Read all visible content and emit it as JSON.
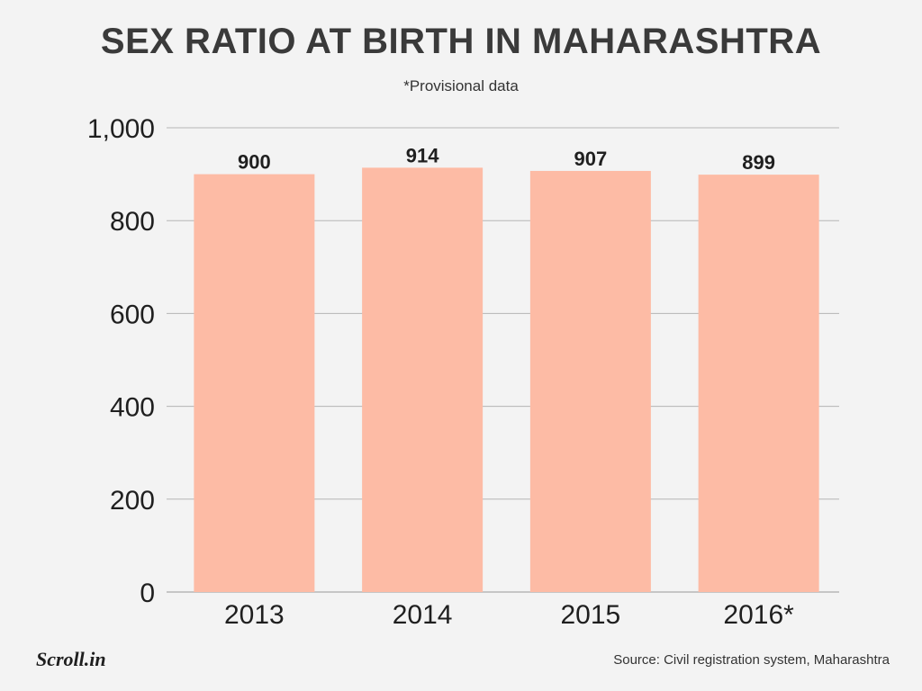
{
  "chart_data": {
    "type": "bar",
    "title": "SEX RATIO AT BIRTH IN MAHARASHTRA",
    "subtitle": "*Provisional data",
    "categories": [
      "2013",
      "2014",
      "2015",
      "2016*"
    ],
    "values": [
      900,
      914,
      907,
      899
    ],
    "data_labels": [
      "900",
      "914",
      "907",
      "899"
    ],
    "ylim": [
      0,
      1000
    ],
    "yticks": [
      0,
      200,
      400,
      600,
      800,
      1000
    ],
    "ytick_labels": [
      "0",
      "200",
      "400",
      "600",
      "800",
      "1,000"
    ],
    "xlabel": "",
    "ylabel": "",
    "grid": true,
    "bar_color": "#fdbba5",
    "grid_color": "#b5b5b5"
  },
  "footer": {
    "logo": "Scroll.in",
    "source": "Source: Civil registration system, Maharashtra"
  }
}
